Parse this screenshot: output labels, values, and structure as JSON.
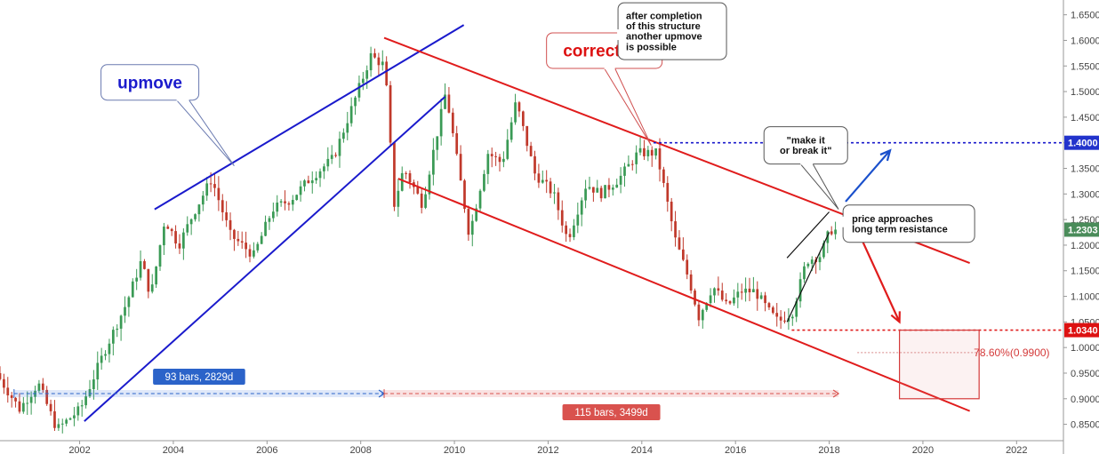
{
  "chart_data": {
    "type": "candlestick",
    "title": "",
    "xlabel": "",
    "ylabel": "",
    "x_range": [
      2000.3,
      2023.0
    ],
    "y_range": [
      0.825,
      1.665
    ],
    "grid": false,
    "x_ticks": [
      "2002",
      "2004",
      "2006",
      "2008",
      "2010",
      "2012",
      "2014",
      "2016",
      "2018",
      "2020",
      "2022"
    ],
    "y_ticks": [
      "1.6500",
      "1.6000",
      "1.5500",
      "1.5000",
      "1.4500",
      "1.4000",
      "1.3500",
      "1.3000",
      "1.2500",
      "1.2000",
      "1.1500",
      "1.1000",
      "1.0500",
      "1.0000",
      "0.9500",
      "0.9000",
      "0.8500"
    ],
    "price_tags": [
      {
        "label": "1.4000",
        "value": 1.4,
        "color": "#2233cc"
      },
      {
        "label": "1.2303",
        "value": 1.2303,
        "color": "#4a8c5a"
      },
      {
        "label": "1.0340",
        "value": 1.034,
        "color": "#dd1111"
      }
    ],
    "colors": {
      "up": "#3a9a55",
      "down": "#c0392b",
      "channel_up": "#1a1acc",
      "channel_down": "#e01c1c"
    },
    "keypoints": [
      [
        2000.3,
        0.95
      ],
      [
        2000.8,
        0.88
      ],
      [
        2001.2,
        0.93
      ],
      [
        2001.6,
        0.84
      ],
      [
        2002.1,
        0.88
      ],
      [
        2002.6,
        0.99
      ],
      [
        2003.1,
        1.09
      ],
      [
        2003.4,
        1.17
      ],
      [
        2003.6,
        1.1
      ],
      [
        2003.9,
        1.25
      ],
      [
        2004.2,
        1.2
      ],
      [
        2004.5,
        1.26
      ],
      [
        2004.9,
        1.33
      ],
      [
        2005.3,
        1.22
      ],
      [
        2005.8,
        1.18
      ],
      [
        2006.2,
        1.27
      ],
      [
        2006.6,
        1.29
      ],
      [
        2007.0,
        1.33
      ],
      [
        2007.5,
        1.37
      ],
      [
        2007.9,
        1.47
      ],
      [
        2008.3,
        1.57
      ],
      [
        2008.6,
        1.55
      ],
      [
        2008.8,
        1.28
      ],
      [
        2009.0,
        1.35
      ],
      [
        2009.4,
        1.28
      ],
      [
        2009.9,
        1.5
      ],
      [
        2010.4,
        1.22
      ],
      [
        2010.8,
        1.38
      ],
      [
        2011.1,
        1.36
      ],
      [
        2011.4,
        1.48
      ],
      [
        2011.8,
        1.34
      ],
      [
        2012.2,
        1.3
      ],
      [
        2012.5,
        1.21
      ],
      [
        2012.9,
        1.32
      ],
      [
        2013.2,
        1.3
      ],
      [
        2013.6,
        1.33
      ],
      [
        2014.0,
        1.38
      ],
      [
        2014.4,
        1.38
      ],
      [
        2014.8,
        1.21
      ],
      [
        2015.1,
        1.13
      ],
      [
        2015.3,
        1.06
      ],
      [
        2015.6,
        1.12
      ],
      [
        2015.9,
        1.08
      ],
      [
        2016.2,
        1.11
      ],
      [
        2016.5,
        1.11
      ],
      [
        2016.8,
        1.07
      ],
      [
        2017.0,
        1.05
      ],
      [
        2017.3,
        1.07
      ],
      [
        2017.6,
        1.17
      ],
      [
        2017.9,
        1.18
      ],
      [
        2018.1,
        1.23
      ],
      [
        2018.2,
        1.2303
      ]
    ],
    "volatility": 0.02,
    "series": [
      {
        "type": "line",
        "points": [
          [
            2003.6,
            1.27
          ],
          [
            2010.2,
            1.63
          ]
        ],
        "color": "#1a1acc"
      },
      {
        "type": "line",
        "points": [
          [
            2002.1,
            0.856
          ],
          [
            2009.8,
            1.49
          ]
        ],
        "color": "#1a1acc"
      },
      {
        "type": "line",
        "points": [
          [
            2008.5,
            1.605
          ],
          [
            2021.0,
            1.165
          ]
        ],
        "color": "#e01c1c"
      },
      {
        "type": "line",
        "points": [
          [
            2008.8,
            1.33
          ],
          [
            2021.0,
            0.876
          ]
        ],
        "color": "#e01c1c"
      },
      {
        "type": "line",
        "points": [
          [
            2017.1,
            1.05
          ],
          [
            2018.0,
            1.225
          ]
        ],
        "color": "#111111"
      },
      {
        "type": "line",
        "points": [
          [
            2017.1,
            1.175
          ],
          [
            2018.0,
            1.265
          ]
        ],
        "color": "#111111"
      }
    ],
    "horizontal_lines": [
      {
        "y": 1.4,
        "x_start": 2014.25,
        "color": "#1a1acc",
        "style": "dotted"
      },
      {
        "y": 1.034,
        "x_start": 2017.2,
        "color": "#e01c1c",
        "style": "dotted"
      }
    ],
    "fib_box": {
      "x": [
        2019.5,
        2021.2
      ],
      "y": [
        0.9,
        1.034
      ],
      "level_y": 0.99,
      "label": "78.60%(0.9900)"
    },
    "measurements": [
      {
        "label": "93 bars, 2829d",
        "x": [
          2000.6,
          2008.5
        ],
        "y": 0.91,
        "color": "#2b63c9"
      },
      {
        "label": "115 bars, 3499d",
        "x": [
          2008.5,
          2018.2
        ],
        "y": 0.91,
        "color": "#d9524e"
      }
    ],
    "arrows": [
      {
        "from": [
          2018.35,
          1.285
        ],
        "to": [
          2019.3,
          1.385
        ],
        "color": "#1a50cc"
      },
      {
        "from": [
          2018.5,
          1.25
        ],
        "to": [
          2019.5,
          1.05
        ],
        "color": "#e01c1c"
      }
    ],
    "annotations": [
      {
        "text": "upmove",
        "color": "#1a1acc",
        "x": 2003.5,
        "y": 1.518
      },
      {
        "text": "correction",
        "color": "#dd1111",
        "x": 2013.2,
        "y": 1.58
      },
      {
        "text": "after completion\nof this structure\nanother upmove\nis possible",
        "x": 2014.65,
        "y": 1.618
      },
      {
        "text": "\"make it\nor break it\"",
        "x": 2017.5,
        "y": 1.395
      },
      {
        "text": "price approaches\nlong term resistance",
        "x": 2019.7,
        "y": 1.242
      }
    ]
  }
}
